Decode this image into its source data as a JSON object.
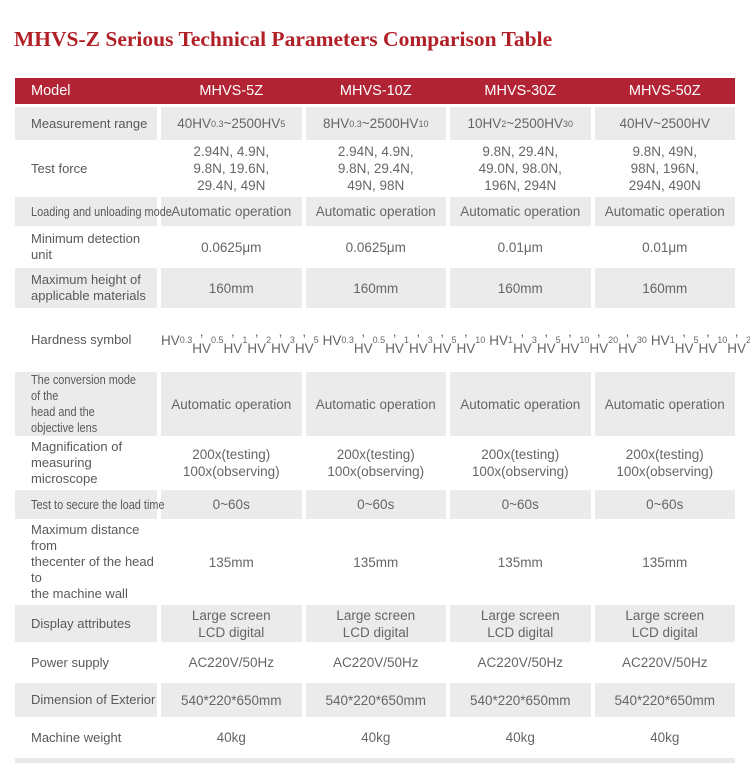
{
  "page": {
    "title": "MHVS-Z Serious Technical Parameters Comparison Table"
  },
  "colors": {
    "title_red": "#b11f27",
    "header_red": "#b22334",
    "row_gray": "#ebebeb"
  },
  "table": {
    "header": {
      "model_label": "Model",
      "columns": [
        "MHVS-5Z",
        "MHVS-10Z",
        "MHVS-30Z",
        "MHVS-50Z"
      ]
    },
    "rows": [
      {
        "label": "Measurement range",
        "values": [
          "40HV<sub>0.3</sub>~2500HV<sub>5</sub>",
          "8HV<sub>0.3</sub>~2500HV<sub>10</sub>",
          "10HV<sub>2</sub>~2500HV<sub>30</sub>",
          "40HV~2500HV"
        ]
      },
      {
        "label": "Test force",
        "values": [
          [
            "2.94N,  4.9N,",
            "9.8N,  19.6N,",
            "29.4N,  49N"
          ],
          [
            "2.94N,  4.9N,",
            "9.8N,  29.4N,",
            "49N,  98N"
          ],
          [
            "9.8N,  29.4N,",
            "49.0N,  98.0N,",
            "196N,  294N"
          ],
          [
            "9.8N,  49N,",
            "98N,  196N,",
            "294N,  490N"
          ]
        ]
      },
      {
        "label": "Loading and unloading mode",
        "values": [
          "Automatic operation",
          "Automatic operation",
          "Automatic operation",
          "Automatic operation"
        ]
      },
      {
        "label": "Minimum detection unit",
        "values": [
          "0.0625μm",
          "0.0625μm",
          "0.01μm",
          "0.01μm"
        ]
      },
      {
        "label": [
          "Maximum height of",
          "applicable materials"
        ],
        "values": [
          "160mm",
          "160mm",
          "160mm",
          "160mm"
        ]
      },
      {
        "label": "Hardness symbol",
        "values": [
          [
            "HV<sub>0.3</sub>,  HV<sub>0.5</sub>,",
            "HV<sub>1</sub>,  HV<sub>2</sub>,",
            "HV<sub>3</sub>,  HV<sub>5</sub>"
          ],
          [
            "HV<sub>0.3</sub>,  HV<sub>0.5</sub>,",
            "HV<sub>1</sub>,  HV<sub>3</sub>,",
            "HV<sub>5</sub>,  HV<sub>10</sub>"
          ],
          [
            "HV<sub>1</sub>,  HV<sub>3</sub>,",
            "HV<sub>5</sub>,  HV<sub>10</sub>,",
            "HV<sub>20</sub>,  HV<sub>30</sub>"
          ],
          [
            "HV<sub>1</sub>,  HV<sub>5</sub>,",
            "HV<sub>10</sub>,  HV<sub>20</sub>,",
            "HV<sub>30</sub>,  HV<sub>50</sub>"
          ]
        ]
      },
      {
        "label": [
          "The conversion mode of the",
          "head and the objective lens"
        ],
        "values": [
          "Automatic operation",
          "Automatic operation",
          "Automatic operation",
          "Automatic operation"
        ]
      },
      {
        "label": [
          "Magnification of",
          "measuring microscope"
        ],
        "values": [
          [
            "200x(testing)",
            "100x(observing)"
          ],
          [
            "200x(testing)",
            "100x(observing)"
          ],
          [
            "200x(testing)",
            "100x(observing)"
          ],
          [
            "200x(testing)",
            "100x(observing)"
          ]
        ]
      },
      {
        "label": "Test to secure the load time",
        "values": [
          "0~60s",
          "0~60s",
          "0~60s",
          "0~60s"
        ]
      },
      {
        "label": [
          "Maximum distance from",
          "thecenter of the head to",
          "the machine wall"
        ],
        "values": [
          "135mm",
          "135mm",
          "135mm",
          "135mm"
        ]
      },
      {
        "label": "Display attributes",
        "values": [
          [
            "Large screen",
            "LCD digital"
          ],
          [
            "Large screen",
            "LCD digital"
          ],
          [
            "Large screen",
            "LCD digital"
          ],
          [
            "Large screen",
            "LCD digital"
          ]
        ]
      },
      {
        "label": "Power supply",
        "values": [
          "AC220V/50Hz",
          "AC220V/50Hz",
          "AC220V/50Hz",
          "AC220V/50Hz"
        ]
      },
      {
        "label": "Dimension of Exterior",
        "values": [
          "540*220*650mm",
          "540*220*650mm",
          "540*220*650mm",
          "540*220*650mm"
        ]
      },
      {
        "label": "Machine weight",
        "values": [
          "40kg",
          "40kg",
          "40kg",
          "40kg"
        ]
      }
    ]
  }
}
